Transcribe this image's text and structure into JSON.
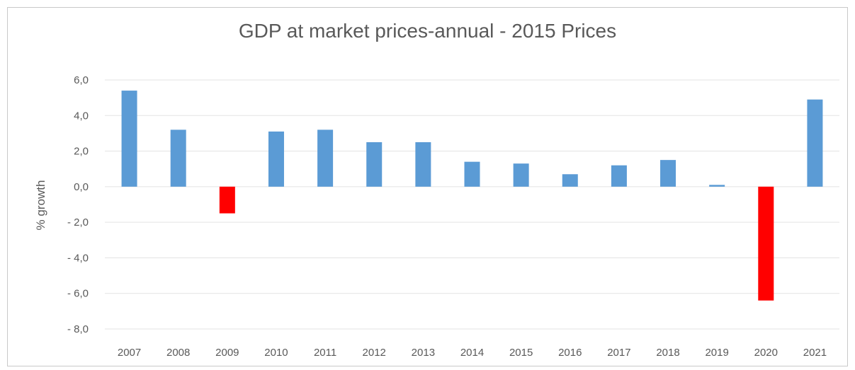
{
  "chart_data": {
    "type": "bar",
    "title": "GDP at market prices-annual - 2015 Prices",
    "xlabel": "",
    "ylabel": "% growth",
    "categories": [
      "2007",
      "2008",
      "2009",
      "2010",
      "2011",
      "2012",
      "2013",
      "2014",
      "2015",
      "2016",
      "2017",
      "2018",
      "2019",
      "2020",
      "2021"
    ],
    "values": [
      5.4,
      3.2,
      -1.5,
      3.1,
      3.2,
      2.5,
      2.5,
      1.4,
      1.3,
      0.7,
      1.2,
      1.5,
      0.1,
      -6.4,
      4.9
    ],
    "ylim": [
      -8,
      6
    ],
    "yticks": [
      6,
      4,
      2,
      0,
      -2,
      -4,
      -6,
      -8
    ],
    "ytick_labels": [
      "6,0",
      "4,0",
      "2,0",
      "0,0",
      "- 2,0",
      "- 4,0",
      "- 6,0",
      "- 8,0"
    ],
    "grid": true,
    "legend": "none",
    "colors": {
      "positive": "#5b9bd5",
      "negative": "#ff0000",
      "grid": "#e3e3e3",
      "text": "#595959"
    }
  }
}
